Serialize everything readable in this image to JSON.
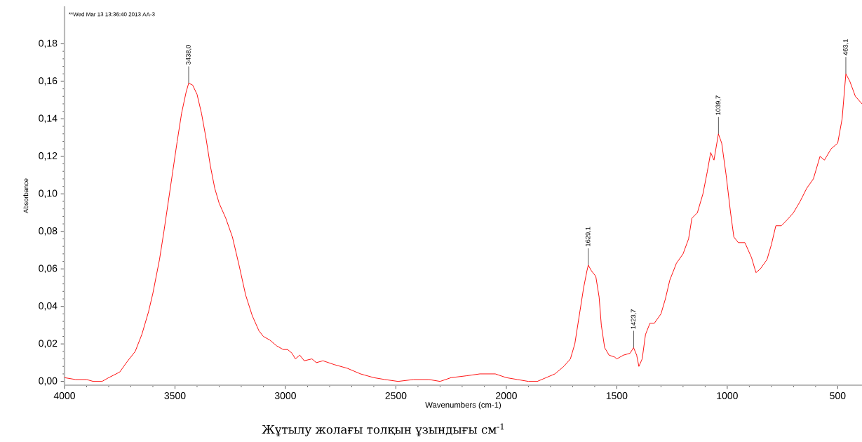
{
  "chart_data": {
    "type": "line",
    "xlabel": "Wavenumbers (cm-1)",
    "ylabel": "Absorbance",
    "xlim": [
      4000,
      390
    ],
    "ylim": [
      -0.002,
      0.2
    ],
    "xticks": [
      4000,
      3500,
      3000,
      2500,
      2000,
      1500,
      1000,
      500
    ],
    "yticks": [
      {
        "value": 0,
        "label": "0,00"
      },
      {
        "value": 0.02,
        "label": "0,02"
      },
      {
        "value": 0.04,
        "label": "0,04"
      },
      {
        "value": 0.06,
        "label": "0,06"
      },
      {
        "value": 0.08,
        "label": "0,08"
      },
      {
        "value": 0.1,
        "label": "0,10"
      },
      {
        "value": 0.12,
        "label": "0,12"
      },
      {
        "value": 0.14,
        "label": "0,14"
      },
      {
        "value": 0.16,
        "label": "0,16"
      },
      {
        "value": 0.18,
        "label": "0,18"
      }
    ],
    "series": [
      {
        "color": "#ff0000",
        "x": [
          4000,
          3950,
          3900,
          3870,
          3830,
          3800,
          3750,
          3720,
          3680,
          3650,
          3620,
          3600,
          3570,
          3550,
          3530,
          3510,
          3490,
          3470,
          3450,
          3438,
          3420,
          3400,
          3380,
          3360,
          3340,
          3320,
          3300,
          3270,
          3240,
          3210,
          3180,
          3150,
          3120,
          3100,
          3070,
          3040,
          3010,
          2990,
          2970,
          2955,
          2935,
          2915,
          2880,
          2860,
          2830,
          2780,
          2720,
          2660,
          2600,
          2550,
          2490,
          2420,
          2350,
          2300,
          2250,
          2180,
          2120,
          2050,
          2000,
          1950,
          1900,
          1860,
          1820,
          1780,
          1740,
          1710,
          1690,
          1670,
          1650,
          1635,
          1629,
          1615,
          1595,
          1580,
          1570,
          1555,
          1535,
          1510,
          1500,
          1470,
          1440,
          1424,
          1410,
          1400,
          1385,
          1370,
          1350,
          1330,
          1300,
          1280,
          1260,
          1230,
          1200,
          1175,
          1160,
          1135,
          1110,
          1090,
          1075,
          1060,
          1040,
          1025,
          1005,
          985,
          970,
          950,
          920,
          890,
          870,
          850,
          820,
          800,
          780,
          755,
          730,
          700,
          670,
          640,
          610,
          580,
          560,
          530,
          500,
          480,
          463,
          445,
          420,
          390
        ],
        "values": [
          0.002,
          0.001,
          0.001,
          0.0,
          0.0,
          0.002,
          0.005,
          0.01,
          0.016,
          0.025,
          0.037,
          0.047,
          0.065,
          0.08,
          0.096,
          0.112,
          0.128,
          0.143,
          0.154,
          0.159,
          0.158,
          0.153,
          0.143,
          0.13,
          0.115,
          0.103,
          0.095,
          0.087,
          0.077,
          0.062,
          0.046,
          0.035,
          0.027,
          0.024,
          0.022,
          0.019,
          0.017,
          0.017,
          0.015,
          0.012,
          0.014,
          0.011,
          0.012,
          0.01,
          0.011,
          0.009,
          0.007,
          0.004,
          0.002,
          0.001,
          0.0,
          0.001,
          0.001,
          0.0,
          0.002,
          0.003,
          0.004,
          0.004,
          0.002,
          0.001,
          0.0,
          0.0,
          0.002,
          0.004,
          0.008,
          0.012,
          0.02,
          0.035,
          0.05,
          0.059,
          0.062,
          0.059,
          0.056,
          0.045,
          0.03,
          0.018,
          0.014,
          0.013,
          0.012,
          0.014,
          0.015,
          0.018,
          0.014,
          0.008,
          0.012,
          0.025,
          0.031,
          0.031,
          0.036,
          0.044,
          0.054,
          0.063,
          0.068,
          0.076,
          0.087,
          0.09,
          0.1,
          0.112,
          0.122,
          0.118,
          0.132,
          0.127,
          0.11,
          0.09,
          0.077,
          0.074,
          0.074,
          0.066,
          0.058,
          0.06,
          0.065,
          0.073,
          0.083,
          0.083,
          0.086,
          0.09,
          0.096,
          0.103,
          0.108,
          0.12,
          0.118,
          0.124,
          0.127,
          0.14,
          0.164,
          0.16,
          0.152,
          0.148
        ]
      }
    ],
    "annotations": [
      "**Wed Mar 13 13:36:40 2013 AA-3",
      {
        "text": "3438,0",
        "x": 3438,
        "y": 0.159
      },
      {
        "text": "1629,1",
        "x": 1629.1,
        "y": 0.062
      },
      {
        "text": "1423,7",
        "x": 1423.7,
        "y": 0.018
      },
      {
        "text": "1039,7",
        "x": 1039.7,
        "y": 0.132
      },
      {
        "text": "463,1",
        "x": 463.1,
        "y": 0.164
      },
      "Жұтылу жолағы толқын ұзындығы см$^{-1}$"
    ]
  }
}
